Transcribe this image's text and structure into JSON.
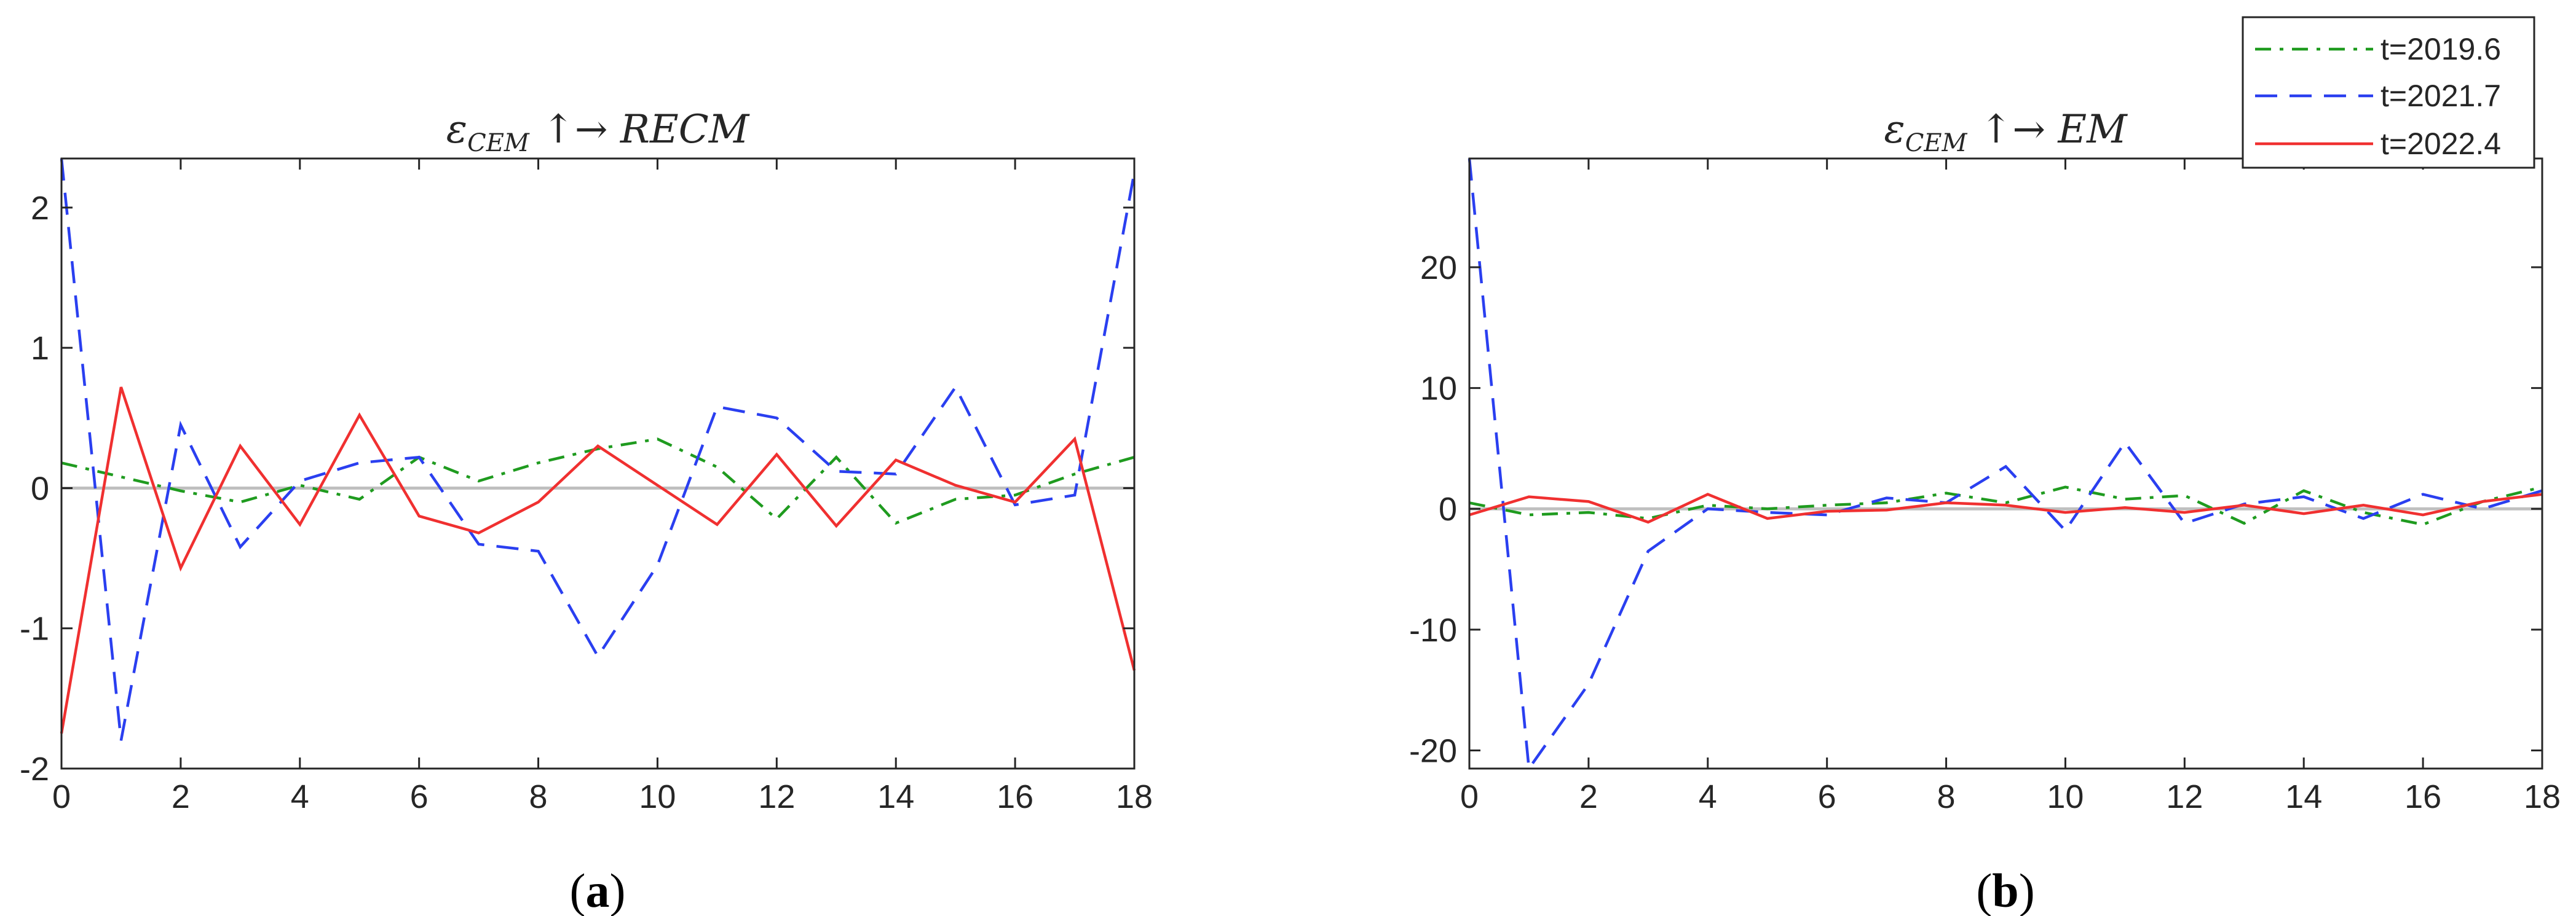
{
  "chart_data": [
    {
      "type": "line",
      "panel": "a",
      "title": "ε_CEM ↑→ RECM",
      "title_parts": {
        "sym": "ε",
        "sub": "CEM",
        "arrows": " ↑→ ",
        "target": "RECM"
      },
      "caption": {
        "open": "(",
        "letter": "a",
        "close": ")"
      },
      "x": [
        0,
        1,
        2,
        3,
        4,
        5,
        6,
        7,
        8,
        9,
        10,
        11,
        12,
        13,
        14,
        15,
        16,
        17,
        18
      ],
      "xlim": [
        0,
        18
      ],
      "ylim": [
        -2,
        2.35
      ],
      "xticks": [
        "0",
        "2",
        "4",
        "6",
        "8",
        "10",
        "12",
        "14",
        "16",
        "18"
      ],
      "yticks": [
        "-2",
        "-1",
        "0",
        "1",
        "2"
      ],
      "zero_line": true,
      "series": [
        {
          "name": "t=2019.6",
          "values": [
            0.18,
            0.08,
            -0.02,
            -0.1,
            0.02,
            -0.08,
            0.22,
            0.05,
            0.18,
            0.28,
            0.35,
            0.15,
            -0.22,
            0.22,
            -0.25,
            -0.08,
            -0.05,
            0.1,
            0.22
          ]
        },
        {
          "name": "t=2021.7",
          "values": [
            2.35,
            -1.8,
            0.45,
            -0.42,
            0.05,
            0.18,
            0.22,
            -0.4,
            -0.45,
            -1.2,
            -0.55,
            0.58,
            0.5,
            0.12,
            0.1,
            0.72,
            -0.12,
            -0.05,
            2.25
          ]
        },
        {
          "name": "t=2022.4",
          "values": [
            -1.75,
            0.72,
            -0.57,
            0.3,
            -0.26,
            0.52,
            -0.2,
            -0.32,
            -0.1,
            0.3,
            0.02,
            -0.26,
            0.24,
            -0.27,
            0.2,
            0.02,
            -0.1,
            0.35,
            -1.3
          ]
        }
      ]
    },
    {
      "type": "line",
      "panel": "b",
      "title": "ε_CEM ↑→ EM",
      "title_parts": {
        "sym": "ε",
        "sub": "CEM",
        "arrows": " ↑→ ",
        "target": "EM"
      },
      "caption": {
        "open": "(",
        "letter": "b",
        "close": ")"
      },
      "x": [
        0,
        1,
        2,
        3,
        4,
        5,
        6,
        7,
        8,
        9,
        10,
        11,
        12,
        13,
        14,
        15,
        16,
        17,
        18
      ],
      "xlim": [
        0,
        18
      ],
      "ylim": [
        -21.5,
        29
      ],
      "xticks": [
        "0",
        "2",
        "4",
        "6",
        "8",
        "10",
        "12",
        "14",
        "16",
        "18"
      ],
      "yticks": [
        "-20",
        "-10",
        "0",
        "10",
        "20"
      ],
      "zero_line": true,
      "series": [
        {
          "name": "t=2019.6",
          "values": [
            0.5,
            -0.5,
            -0.3,
            -0.8,
            0.3,
            0,
            0.3,
            0.5,
            1.3,
            0.5,
            1.8,
            0.8,
            1.1,
            -1.2,
            1.5,
            -0.3,
            -1.3,
            0.6,
            1.8
          ]
        },
        {
          "name": "t=2021.7",
          "values": [
            29,
            -21.5,
            -14.5,
            -3.5,
            0,
            -0.3,
            -0.5,
            0.9,
            0.5,
            3.5,
            -1.8,
            5.5,
            -1.2,
            0.4,
            1,
            -0.8,
            1.2,
            0,
            1.5
          ]
        },
        {
          "name": "t=2022.4",
          "values": [
            -0.5,
            1,
            0.6,
            -1.1,
            1.2,
            -0.8,
            -0.2,
            -0.1,
            0.5,
            0.3,
            -0.3,
            0.1,
            -0.3,
            0.3,
            -0.4,
            0.3,
            -0.5,
            0.6,
            1.2
          ]
        }
      ]
    }
  ],
  "legend": {
    "placement": "top-right",
    "entries": [
      {
        "name": "t=2019.6",
        "color": "#1f9b1f",
        "dash": "dashdot"
      },
      {
        "name": "t=2021.7",
        "color": "#2a3ff0",
        "dash": "dashed"
      },
      {
        "name": "t=2022.4",
        "color": "#f03030",
        "dash": "solid"
      }
    ]
  },
  "colors": {
    "series": [
      "#1f9b1f",
      "#2a3ff0",
      "#f03030"
    ],
    "zero_line": "#bfbfbf",
    "axis": "#262626"
  }
}
